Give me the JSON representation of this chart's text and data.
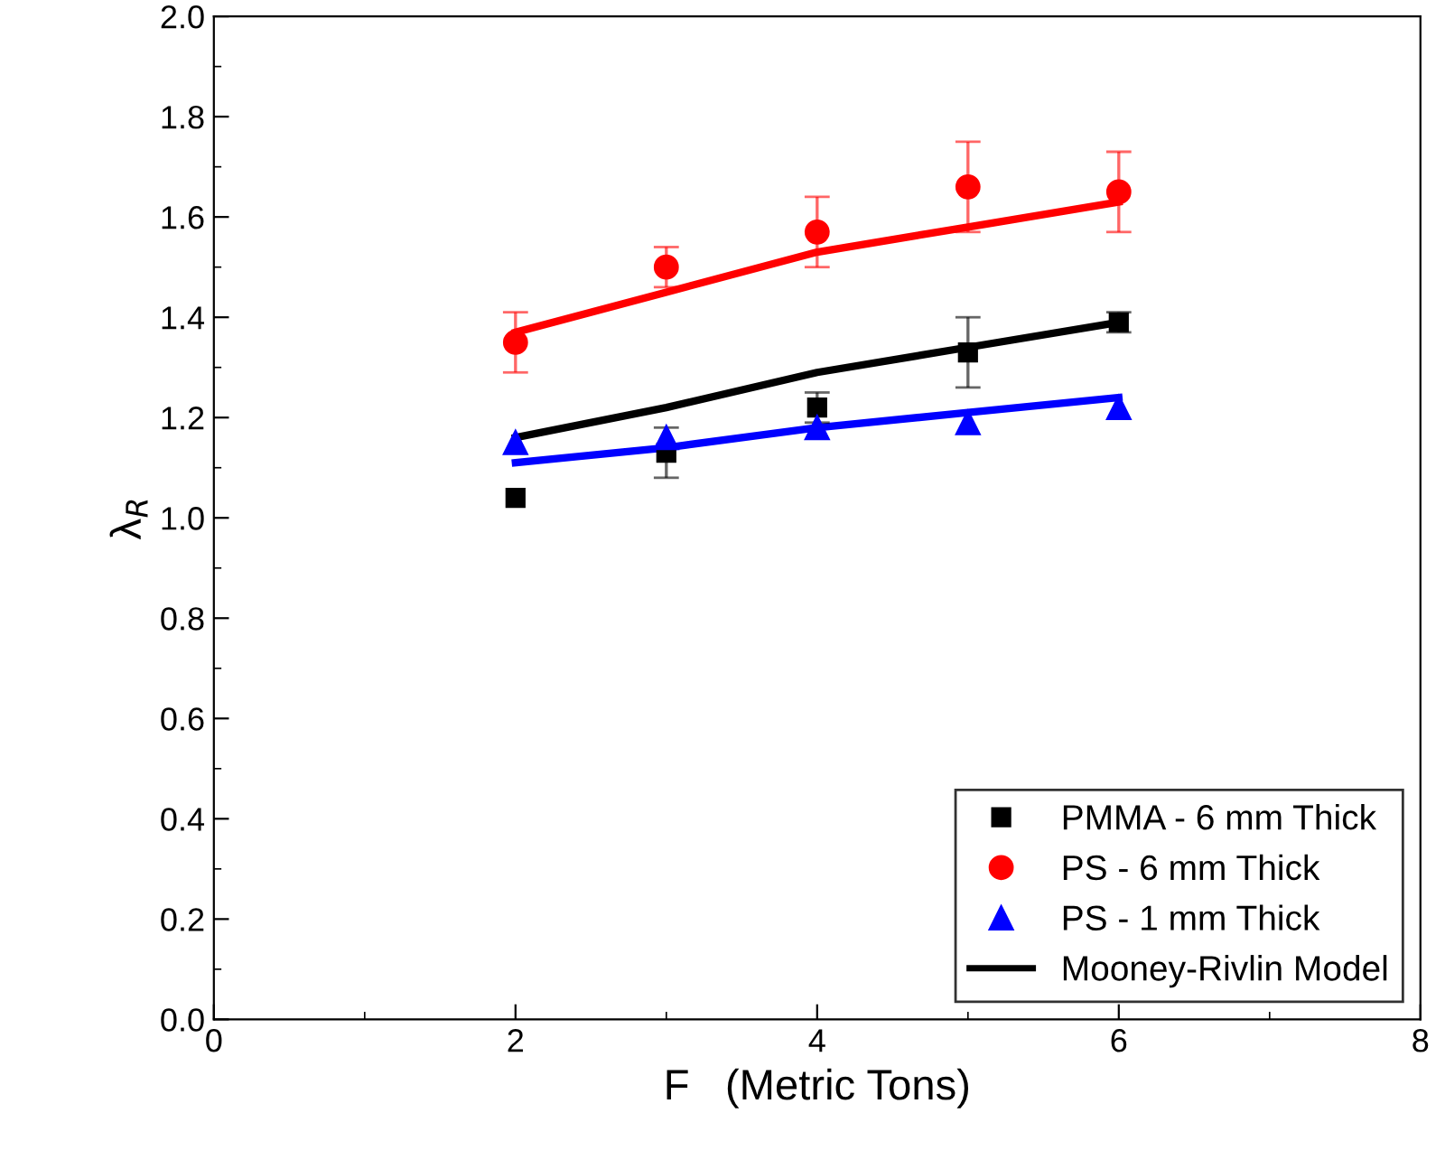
{
  "chart_data": {
    "type": "scatter",
    "xlabel": "F   (Metric Tons)",
    "ylabel": "λ$_{R}$",
    "x": [
      2,
      3,
      4,
      5,
      6
    ],
    "xlim": [
      0,
      8
    ],
    "xticks": [
      0,
      2,
      4,
      6,
      8
    ],
    "ylim": [
      0,
      2
    ],
    "yticks": [
      {
        "value": 0,
        "label": "0.0"
      },
      {
        "value": 0.2,
        "label": "0.2"
      },
      {
        "value": 0.4,
        "label": "0.4"
      },
      {
        "value": 0.6,
        "label": "0.6"
      },
      {
        "value": 0.8,
        "label": "0.8"
      },
      {
        "value": 1.0,
        "label": "1.0"
      },
      {
        "value": 1.2,
        "label": "1.2"
      },
      {
        "value": 1.4,
        "label": "1.4"
      },
      {
        "value": 1.6,
        "label": "1.6"
      },
      {
        "value": 1.8,
        "label": "1.8"
      },
      {
        "value": 2.0,
        "label": "2.0"
      }
    ],
    "legend": "bottom right",
    "grid": false,
    "series": [
      {
        "name": "PMMA - 6 mm Thick",
        "marker": "square",
        "color": "#000000",
        "values": [
          1.04,
          1.13,
          1.22,
          1.33,
          1.39
        ],
        "errors": [
          null,
          0.05,
          0.03,
          0.07,
          0.02
        ]
      },
      {
        "name": "PS - 6 mm Thick",
        "marker": "circle",
        "color": "#ff0000",
        "values": [
          1.35,
          1.5,
          1.57,
          1.66,
          1.65
        ],
        "errors": [
          0.06,
          0.04,
          0.07,
          0.09,
          0.08
        ]
      },
      {
        "name": "PS - 1 mm Thick",
        "marker": "triangle",
        "color": "#0000ff",
        "values": [
          1.15,
          1.16,
          1.18,
          1.19,
          1.22
        ]
      },
      {
        "name": "Mooney-Rivlin Model",
        "type": "line",
        "line_style": "solid",
        "color": "#000000",
        "values": [
          1.16,
          1.22,
          1.29,
          1.34,
          1.39
        ]
      },
      {
        "type": "line",
        "line_style": "solid",
        "color": "#ff0000",
        "values": [
          1.37,
          1.45,
          1.53,
          1.58,
          1.63
        ]
      },
      {
        "type": "line",
        "line_style": "solid",
        "color": "#0000ff",
        "values": [
          1.11,
          1.14,
          1.18,
          1.21,
          1.24
        ]
      }
    ]
  }
}
